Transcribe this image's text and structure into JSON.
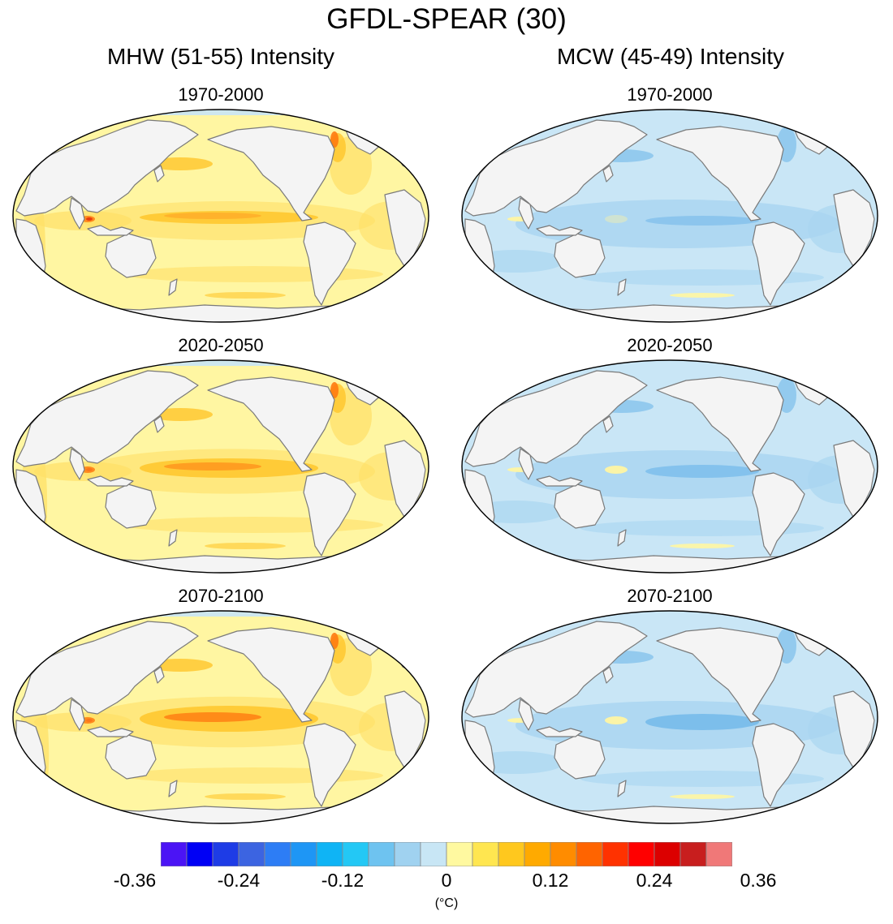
{
  "title": "GFDL-SPEAR (30)",
  "columns": [
    {
      "title": "MHW (51-55) Intensity",
      "sign": "warm"
    },
    {
      "title": "MCW (45-49) Intensity",
      "sign": "cold"
    }
  ],
  "periods": [
    "1970-2000",
    "2020-2050",
    "2070-2100"
  ],
  "colorbar": {
    "colors": [
      "#4b14f5",
      "#0000f5",
      "#1e3ce6",
      "#3c64e1",
      "#2d7df5",
      "#1e96f5",
      "#0fb4f5",
      "#23c8f5",
      "#6ec3f0",
      "#a0d2f0",
      "#c8e6f5",
      "#fff9a0",
      "#ffe650",
      "#ffc81e",
      "#ffaa00",
      "#ff8c00",
      "#ff6400",
      "#ff3200",
      "#ff0000",
      "#dc0000",
      "#c81e1e",
      "#f07878"
    ],
    "tick_labels": [
      "-0.36",
      "-0.24",
      "-0.12",
      "0",
      "0.12",
      "0.24",
      "0.36"
    ],
    "tick_values": [
      -0.36,
      -0.24,
      -0.12,
      0,
      0.12,
      0.24,
      0.36
    ],
    "units": "(°C)"
  },
  "colors": {
    "ocean_warm_base": "#fff6a2",
    "ocean_warm_mid": "#ffe066",
    "ocean_warm_strong": "#ffc62a",
    "ocean_warm_peak": "#ff7a10",
    "ocean_warm_max": "#e42a0a",
    "ocean_cold_base": "#c9e6f6",
    "ocean_cold_mid": "#a9d5f1",
    "ocean_cold_strong": "#6fb7ea",
    "ocean_cold_peak": "#2f6fd9",
    "ocean_cold_max": "#1a2bc0",
    "land": "#f4f4f4",
    "coast": "#7a7a7a"
  }
}
